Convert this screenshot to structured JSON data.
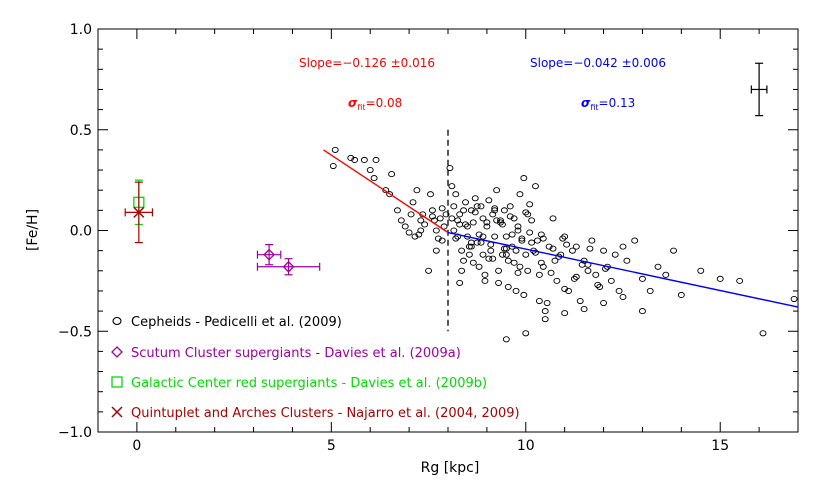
{
  "chart_data": {
    "type": "scatter",
    "title": "",
    "xlabel": "Rg [kpc]",
    "ylabel": "[Fe/H]",
    "xlim": [
      -1,
      17
    ],
    "ylim": [
      -1.0,
      1.0
    ],
    "xticks": [
      0,
      5,
      10,
      15
    ],
    "xtick_labels": [
      "0",
      "5",
      "10",
      "15"
    ],
    "yticks": [
      -1.0,
      -0.5,
      0.0,
      0.5,
      1.0
    ],
    "ytick_labels": [
      "−1.0",
      "−0.5",
      "0.0",
      "0.5",
      "1.0"
    ],
    "grid": false,
    "legend_position": "bottom-left",
    "colors": {
      "red": "#ff0000",
      "blue": "#0000ff",
      "magenta": "#a000a0",
      "green": "#00dd00",
      "darkred": "#aa0000",
      "black": "#000000"
    },
    "divider_x": 8,
    "fits": [
      {
        "color": "#ff0000",
        "x": [
          4.8,
          8.0
        ],
        "y": [
          0.4,
          -0.01
        ],
        "slope_text": "Slope=−0.126 ±0.016",
        "sigma_symbol": "σ",
        "sigma_sub": "fit",
        "sigma_value": "=0.08"
      },
      {
        "color": "#0000ff",
        "x": [
          8.0,
          17.0
        ],
        "y": [
          -0.01,
          -0.38
        ],
        "slope_text": "Slope=−0.042 ±0.006",
        "sigma_symbol": "σ",
        "sigma_sub": "fit",
        "sigma_value": "=0.13"
      }
    ],
    "typical_error": {
      "x": 16.0,
      "y": 0.7,
      "xerr": 0.2,
      "yerr": 0.13
    },
    "series": [
      {
        "name": "Cepheids - Pedicelli et al. (2009)",
        "marker": "circle",
        "color": "#000000",
        "x": [
          5.05,
          5.1,
          5.5,
          5.6,
          5.85,
          6.0,
          6.1,
          6.15,
          6.4,
          6.5,
          6.55,
          6.7,
          6.8,
          6.9,
          7.0,
          7.05,
          7.1,
          7.15,
          7.2,
          7.25,
          7.3,
          7.35,
          7.4,
          7.5,
          7.55,
          7.6,
          7.65,
          7.7,
          7.75,
          7.8,
          7.85,
          7.9,
          7.95,
          7.6,
          7.3,
          7.7,
          7.85,
          8.05,
          8.1,
          8.15,
          8.2,
          8.25,
          8.3,
          8.35,
          8.4,
          8.45,
          8.5,
          8.55,
          8.6,
          8.65,
          8.7,
          8.75,
          8.8,
          8.85,
          8.9,
          8.95,
          9.0,
          9.05,
          9.1,
          9.15,
          9.2,
          9.25,
          9.3,
          9.35,
          9.4,
          9.45,
          9.5,
          9.55,
          9.6,
          9.65,
          9.7,
          9.75,
          9.8,
          9.85,
          9.9,
          9.95,
          10.0,
          10.05,
          10.1,
          10.15,
          10.2,
          10.25,
          10.3,
          10.35,
          10.4,
          10.45,
          10.5,
          10.6,
          10.7,
          10.8,
          10.9,
          11.0,
          11.1,
          11.2,
          11.3,
          11.4,
          11.5,
          11.6,
          11.7,
          11.8,
          11.9,
          12.0,
          12.1,
          12.2,
          12.3,
          12.4,
          12.5,
          12.6,
          12.8,
          13.0,
          13.2,
          13.4,
          13.6,
          13.8,
          14.0,
          14.5,
          15.0,
          15.5,
          16.1,
          16.9,
          8.1,
          8.2,
          8.3,
          8.4,
          8.5,
          8.6,
          8.7,
          8.8,
          8.9,
          9.0,
          9.1,
          9.2,
          9.3,
          9.4,
          9.5,
          9.6,
          9.7,
          9.8,
          9.9,
          10.0,
          8.15,
          8.35,
          8.55,
          8.75,
          8.95,
          9.15,
          9.35,
          9.55,
          9.75,
          9.95,
          10.15,
          10.35,
          10.55,
          10.75,
          10.95,
          8.25,
          8.45,
          8.65,
          8.85,
          9.05,
          9.25,
          9.45,
          9.65,
          9.85,
          10.05,
          10.25,
          10.45,
          10.65,
          10.85,
          11.05,
          11.25,
          11.45,
          11.65,
          11.85,
          12.05,
          9.5,
          10.0,
          10.5,
          11.0,
          11.5,
          12.0,
          12.5,
          13.0,
          8.3,
          8.6,
          8.9,
          9.2,
          9.5,
          9.8,
          10.1,
          10.4,
          10.7,
          11.0,
          11.3,
          11.6
        ],
        "y": [
          0.32,
          0.4,
          0.36,
          0.35,
          0.35,
          0.3,
          0.26,
          0.35,
          0.2,
          0.18,
          0.28,
          0.1,
          0.05,
          0.02,
          -0.01,
          0.08,
          0.14,
          -0.03,
          0.2,
          -0.02,
          0.05,
          0.08,
          0.03,
          -0.2,
          0.18,
          0.1,
          0.05,
          0.0,
          -0.04,
          0.06,
          0.11,
          0.02,
          0.08,
          0.07,
          0.0,
          -0.1,
          -0.05,
          0.31,
          0.22,
          0.12,
          0.18,
          0.05,
          0.03,
          -0.1,
          0.1,
          0.14,
          -0.03,
          -0.12,
          0.1,
          0.04,
          0.16,
          -0.06,
          -0.18,
          0.12,
          0.06,
          -0.22,
          0.02,
          0.15,
          -0.1,
          0.08,
          -0.03,
          0.2,
          -0.26,
          0.05,
          -0.12,
          0.1,
          -0.03,
          -0.15,
          0.12,
          -0.08,
          0.06,
          -0.3,
          0.02,
          0.18,
          -0.04,
          0.26,
          -0.12,
          -0.2,
          0.13,
          0.05,
          -0.1,
          0.22,
          -0.05,
          -0.35,
          -0.02,
          -0.18,
          -0.4,
          -0.08,
          0.06,
          -0.25,
          -0.12,
          -0.03,
          -0.3,
          -0.1,
          -0.08,
          -0.35,
          -0.15,
          -0.2,
          -0.05,
          -0.22,
          -0.28,
          -0.1,
          -0.18,
          -0.25,
          -0.12,
          -0.3,
          -0.08,
          -0.15,
          -0.05,
          -0.24,
          -0.3,
          -0.18,
          -0.22,
          -0.1,
          -0.32,
          -0.2,
          -0.24,
          -0.25,
          -0.51,
          -0.34,
          0.06,
          -0.04,
          0.08,
          -0.15,
          0.02,
          -0.08,
          0.09,
          -0.02,
          -0.12,
          0.04,
          -0.07,
          0.11,
          -0.2,
          0.03,
          -0.09,
          0.07,
          -0.16,
          0.0,
          -0.05,
          0.09,
          0.0,
          -0.2,
          -0.08,
          0.12,
          -0.25,
          -0.14,
          0.04,
          -0.28,
          -0.1,
          -0.32,
          -0.06,
          -0.22,
          -0.36,
          -0.15,
          -0.04,
          -0.03,
          0.03,
          -0.16,
          -0.06,
          -0.14,
          0.05,
          -0.09,
          -0.02,
          -0.18,
          0.08,
          -0.11,
          -0.04,
          -0.21,
          -0.13,
          -0.07,
          -0.24,
          -0.17,
          -0.09,
          -0.27,
          -0.19,
          -0.54,
          -0.51,
          -0.44,
          -0.41,
          -0.39,
          -0.36,
          -0.33,
          -0.4,
          -0.26,
          -0.06,
          -0.03,
          0.1,
          -0.12,
          -0.21,
          -0.01,
          -0.16,
          -0.09,
          -0.29,
          -0.23,
          -0.17
        ]
      },
      {
        "name": "Scutum Cluster supergiants - Davies et al. (2009a)",
        "marker": "diamond",
        "color": "#a000a0",
        "points": [
          {
            "x": 3.4,
            "y": -0.12,
            "xerr": 0.3,
            "yerr": 0.05
          },
          {
            "x": 3.9,
            "y": -0.18,
            "xerr": 0.8,
            "yerr": 0.04
          }
        ]
      },
      {
        "name": "Galactic Center red supergiants - Davies et al. (2009b)",
        "marker": "square",
        "color": "#00dd00",
        "points": [
          {
            "x": 0.05,
            "y": 0.14,
            "xerr": 0.0,
            "yerr": 0.11
          }
        ]
      },
      {
        "name": "Quintuplet and Arches Clusters - Najarro et al. (2004, 2009)",
        "marker": "cross",
        "color": "#aa0000",
        "points": [
          {
            "x": 0.05,
            "y": 0.09,
            "xerr": 0.35,
            "yerr": 0.15
          }
        ]
      }
    ]
  }
}
